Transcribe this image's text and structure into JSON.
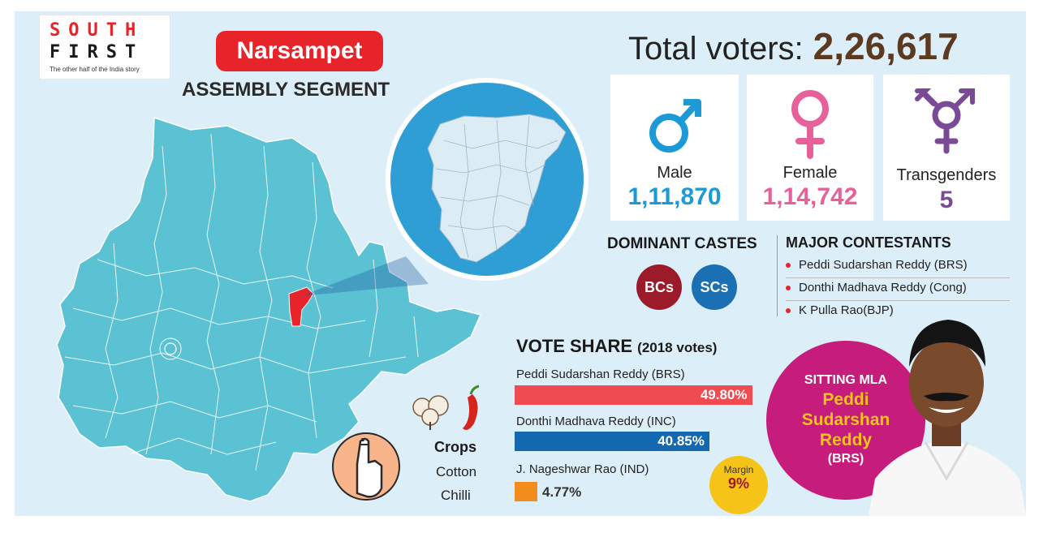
{
  "brand": {
    "line1": "SOUTH",
    "line2": "FIRST",
    "tagline": "The other half of the India story"
  },
  "constituency": {
    "name": "Narsampet",
    "subtitle": "ASSEMBLY SEGMENT"
  },
  "total_voters": {
    "label": "Total voters:",
    "value": "2,26,617"
  },
  "voters": [
    {
      "label": "Male",
      "value": "1,11,870",
      "icon": "male-symbol-icon",
      "color": "#1b9ad6"
    },
    {
      "label": "Female",
      "value": "1,14,742",
      "icon": "female-symbol-icon",
      "color": "#e8609a"
    },
    {
      "label": "Transgenders",
      "value": "5",
      "icon": "transgender-symbol-icon",
      "color": "#7a4a96"
    }
  ],
  "castes": {
    "title": "DOMINANT CASTES",
    "items": [
      {
        "label": "BCs",
        "color": "#9c1b2a"
      },
      {
        "label": "SCs",
        "color": "#1b6fb3"
      }
    ]
  },
  "contestants": {
    "title": "MAJOR CONTESTANTS",
    "items": [
      "Peddi Sudarshan Reddy (BRS)",
      "Donthi Madhava Reddy (Cong)",
      "K Pulla Rao(BJP)"
    ]
  },
  "vote_share": {
    "title": "VOTE SHARE",
    "subtitle": "(2018 votes)",
    "items": [
      {
        "name": "Peddi Sudarshan Reddy (BRS)",
        "value_label": "49.80%",
        "value": 49.8,
        "color": "#ef4b52"
      },
      {
        "name": "Donthi Madhava Reddy (INC)",
        "value_label": "40.85%",
        "value": 40.85,
        "color": "#1468b0"
      },
      {
        "name": "J. Nageshwar Rao (IND)",
        "value_label": "4.77%",
        "value": 4.77,
        "color": "#f28c1c"
      }
    ]
  },
  "margin": {
    "label": "Margin",
    "value": "9%"
  },
  "crops": {
    "label": "Crops",
    "items": [
      "Cotton",
      "Chilli"
    ]
  },
  "sitting_mla": {
    "label": "SITTING MLA",
    "name_lines": [
      "Peddi",
      "Sudarshan",
      "Reddy"
    ],
    "party": "(BRS)"
  },
  "colors": {
    "map_fill": "#5bc2d4",
    "map_highlight": "#e8242b",
    "zoom_circle": "#2f9ed5",
    "background": "#dceef8"
  }
}
